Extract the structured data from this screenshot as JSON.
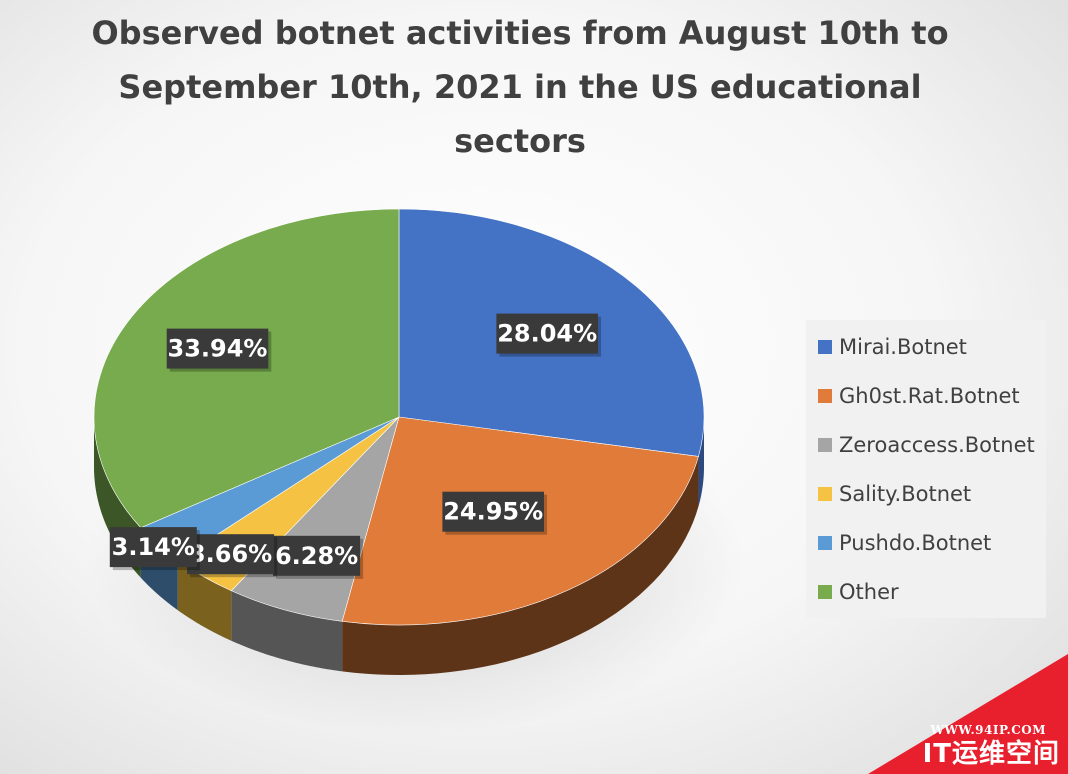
{
  "chart_data": {
    "type": "pie",
    "title": "Observed botnet activities from August 10th to September 10th, 2021 in the US educational sectors",
    "title_lines": [
      "Observed botnet activities from August 10th to",
      "September 10th, 2021 in the US educational",
      "sectors"
    ],
    "legend_position": "right",
    "slices": [
      {
        "label": "Mirai.Botnet",
        "value": 28.04,
        "display": "28.04%",
        "color": "#4472c4",
        "side_color": "#2c4a80"
      },
      {
        "label": "Gh0st.Rat.Botnet",
        "value": 24.95,
        "display": "24.95%",
        "color": "#e07b39",
        "side_color": "#5e3418"
      },
      {
        "label": "Zeroaccess.Botnet",
        "value": 6.28,
        "display": "6.28%",
        "color": "#a5a5a5",
        "side_color": "#555555"
      },
      {
        "label": "Sality.Botnet",
        "value": 3.66,
        "display": "3.66%",
        "color": "#f5c243",
        "side_color": "#7a611e"
      },
      {
        "label": "Pushdo.Botnet",
        "value": 3.14,
        "display": "3.14%",
        "color": "#5b9bd5",
        "side_color": "#2d4d6b"
      },
      {
        "label": "Other",
        "value": 33.94,
        "display": "33.94%",
        "color": "#77ab4d",
        "side_color": "#3c5627"
      }
    ]
  },
  "watermark": {
    "url": "WWW.94IP.COM",
    "name": "IT运维空间",
    "color": "#e8202e"
  }
}
